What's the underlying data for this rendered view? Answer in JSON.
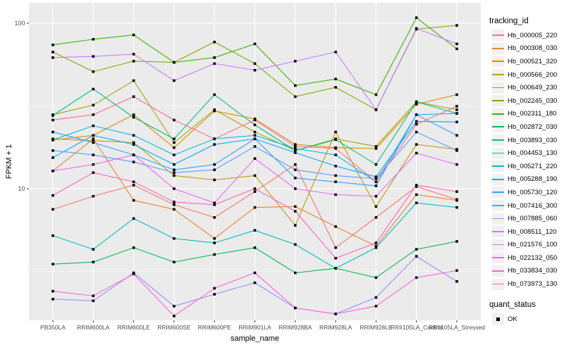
{
  "figure": {
    "y_axis_label": "FPKM + 1",
    "x_axis_label": "sample_name",
    "legend": {
      "tracking_title": "tracking_id",
      "quant_title": "quant_status",
      "quant_label": "OK"
    },
    "style": {
      "panel_bg": "#EBEBEB",
      "grid_color": "#FFFFFF",
      "tick_text_color": "#4D4D4D",
      "axis_title_color": "#000000",
      "point_color": "#000000",
      "legend_key_bg": "#F0F0F0"
    }
  },
  "chart_data": {
    "type": "line",
    "title": "",
    "xlabel": "sample_name",
    "ylabel": "FPKM + 1",
    "y_scale": "log10",
    "ylim": [
      1.6,
      133
    ],
    "y_major_gridlines": [
      10,
      100
    ],
    "y_minor_gridlines": [
      3.162,
      31.62
    ],
    "y_tick_labels": [
      "10",
      "100"
    ],
    "grid": true,
    "legend_position": "right",
    "point_shape": "filled-square",
    "quant_status_value": "OK",
    "categories": [
      "PB350LA",
      "RRIM600LA",
      "RRIM600LE",
      "RRIM600SE",
      "RRIM600PE",
      "RRIM901LA",
      "RRIM928BA",
      "RRIM928LA",
      "RRIM928LE",
      "RRII105LA_Control",
      "RRII105LA_Stressed"
    ],
    "series": [
      {
        "name": "Hb_000005_220",
        "color": "#F8766D",
        "values": [
          7.5,
          9.0,
          10.5,
          8.0,
          6.7,
          9.6,
          14.0,
          4.4,
          6.7,
          10.3,
          8.6
        ]
      },
      {
        "name": "Hb_000308_030",
        "color": "#EA8331",
        "values": [
          12.8,
          20.0,
          8.5,
          7.5,
          5.0,
          7.7,
          7.8,
          5.9,
          4.5,
          9.2,
          8.5
        ]
      },
      {
        "name": "Hb_000521_320",
        "color": "#D89000",
        "values": [
          19.7,
          21.0,
          28.0,
          17.7,
          29.5,
          26.4,
          18.5,
          17.7,
          17.5,
          32.4,
          37.0
        ]
      },
      {
        "name": "Hb_000566_200",
        "color": "#C09B00",
        "values": [
          20.0,
          19.5,
          19.0,
          12.0,
          11.3,
          12.0,
          6.0,
          22.0,
          7.8,
          18.5,
          17.3
        ]
      },
      {
        "name": "Hb_000649_230",
        "color": "#A3A500",
        "values": [
          28.0,
          32.0,
          45.0,
          19.0,
          30.0,
          22.0,
          17.0,
          20.0,
          18.0,
          33.5,
          30.0
        ]
      },
      {
        "name": "Hb_002245_030",
        "color": "#7CAE00",
        "values": [
          67.0,
          51.0,
          59.0,
          58.0,
          77.0,
          57.0,
          36.0,
          41.0,
          30.0,
          92.0,
          97.0
        ]
      },
      {
        "name": "Hb_002311_180",
        "color": "#39B600",
        "values": [
          74.0,
          80.0,
          85.0,
          58.0,
          62.0,
          75.0,
          42.0,
          46.0,
          37.0,
          108.0,
          70.0
        ]
      },
      {
        "name": "Hb_002872_030",
        "color": "#00BB4E",
        "values": [
          3.5,
          3.6,
          4.4,
          3.6,
          4.0,
          4.4,
          3.1,
          3.3,
          2.9,
          4.3,
          4.8
        ]
      },
      {
        "name": "Hb_003893_030",
        "color": "#00C087",
        "values": [
          27.7,
          40.0,
          27.0,
          20.0,
          37.0,
          24.3,
          17.0,
          19.8,
          14.0,
          33.5,
          28.5
        ]
      },
      {
        "name": "Hb_004453_130",
        "color": "#00C0B8",
        "values": [
          5.2,
          4.3,
          6.6,
          5.0,
          4.7,
          5.6,
          4.6,
          3.3,
          4.4,
          8.2,
          7.7
        ]
      },
      {
        "name": "Hb_005271_220",
        "color": "#00BAE0",
        "values": [
          19.7,
          24.0,
          21.0,
          16.0,
          20.0,
          21.0,
          17.5,
          16.0,
          11.0,
          28.0,
          28.5
        ]
      },
      {
        "name": "Hb_005288_190",
        "color": "#00ACFC",
        "values": [
          15.4,
          21.0,
          18.5,
          14.0,
          18.5,
          20.0,
          16.5,
          13.7,
          11.8,
          25.5,
          25.3
        ]
      },
      {
        "name": "Hb_005730_120",
        "color": "#2EA3FF",
        "values": [
          22.0,
          19.0,
          16.0,
          13.0,
          14.0,
          20.0,
          11.6,
          11.0,
          10.4,
          28.0,
          21.0
        ]
      },
      {
        "name": "Hb_007416_300",
        "color": "#619CFF",
        "values": [
          17.0,
          16.0,
          14.5,
          12.5,
          13.0,
          18.0,
          13.0,
          12.0,
          11.5,
          22.0,
          17.0
        ]
      },
      {
        "name": "Hb_007885_060",
        "color": "#9590FF",
        "values": [
          2.15,
          2.1,
          3.1,
          1.95,
          2.3,
          2.7,
          1.9,
          1.75,
          2.2,
          3.9,
          2.75
        ]
      },
      {
        "name": "Hb_008511_120",
        "color": "#C77CFF",
        "values": [
          62.0,
          63.0,
          65.0,
          45.0,
          57.0,
          52.0,
          59.0,
          67.0,
          30.0,
          93.0,
          75.0
        ]
      },
      {
        "name": "Hb_021576_100",
        "color": "#E76BF3",
        "values": [
          12.8,
          14.0,
          16.0,
          10.0,
          8.2,
          15.2,
          10.0,
          9.2,
          9.0,
          16.4,
          14.0
        ]
      },
      {
        "name": "Hb_022132_050",
        "color": "#FA62DB",
        "values": [
          2.4,
          2.25,
          3.05,
          1.7,
          2.5,
          3.1,
          1.9,
          1.75,
          1.95,
          2.9,
          3.2
        ]
      },
      {
        "name": "Hb_033834_030",
        "color": "#FF62BC",
        "values": [
          9.1,
          12.5,
          11.0,
          8.3,
          8.0,
          10.0,
          7.3,
          3.8,
          4.7,
          10.5,
          9.6
        ]
      },
      {
        "name": "Hb_073973_130",
        "color": "#FF6B94",
        "values": [
          26.0,
          28.0,
          36.0,
          26.0,
          20.0,
          26.0,
          18.0,
          17.5,
          11.0,
          24.5,
          31.5
        ]
      }
    ]
  }
}
